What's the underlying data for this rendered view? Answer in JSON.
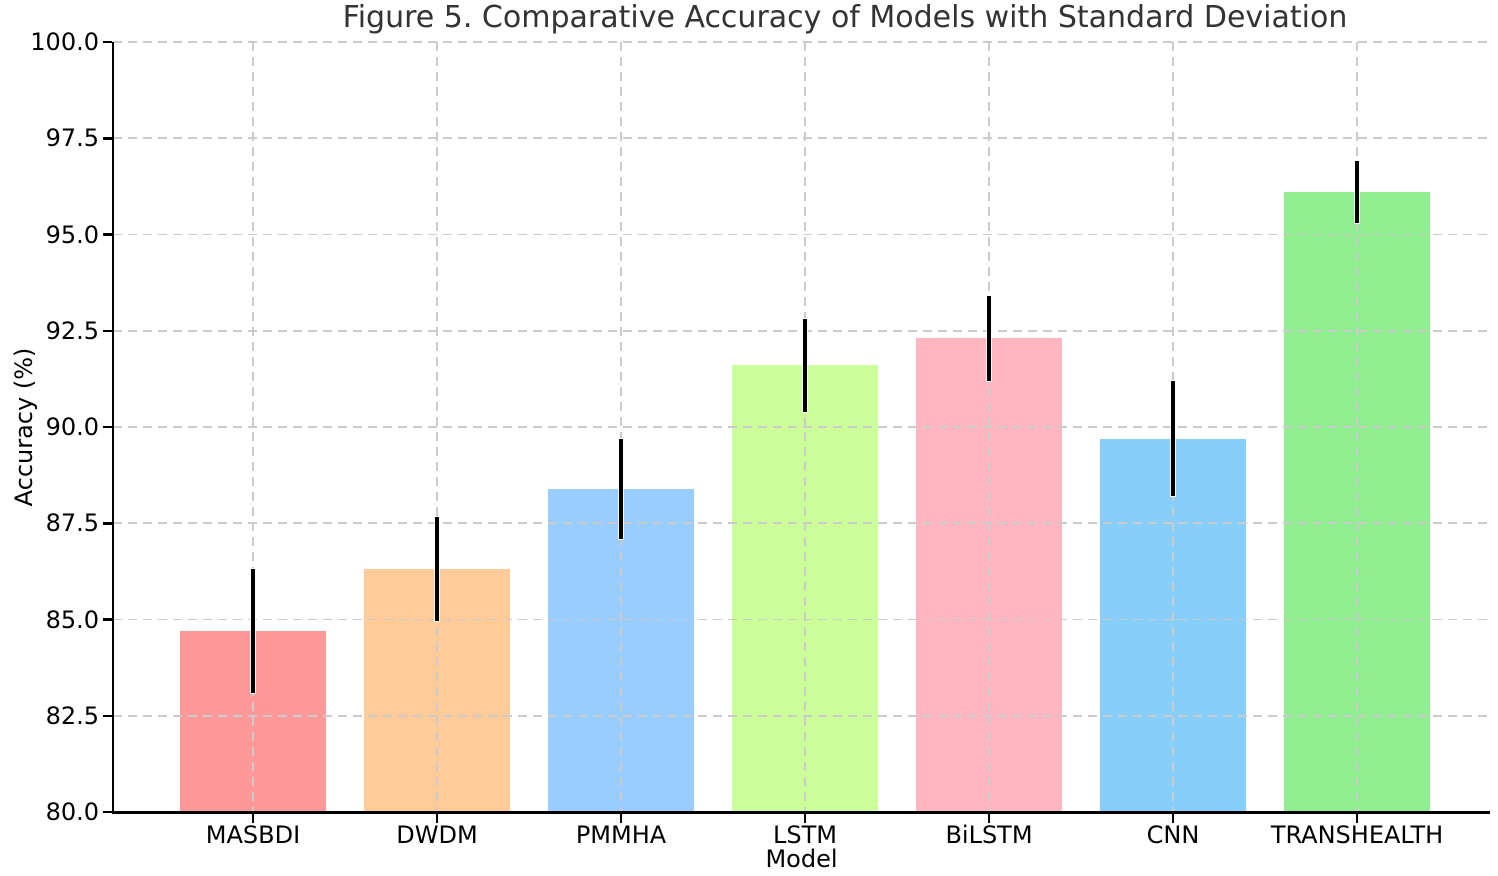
{
  "chart_data": {
    "type": "bar",
    "title": "Figure 5. Comparative Accuracy of Models with Standard Deviation",
    "xlabel": "Model",
    "ylabel": "Accuracy (%)",
    "ylim": [
      80.0,
      100.0
    ],
    "ytick_step": 2.5,
    "ytick_labels": [
      "80.0",
      "82.5",
      "85.0",
      "87.5",
      "90.0",
      "92.5",
      "95.0",
      "97.5",
      "100.0"
    ],
    "grid": true,
    "grid_style": "dashed",
    "legend": "none",
    "categories": [
      "MASBDI",
      "DWDM",
      "PMMHA",
      "LSTM",
      "BiLSTM",
      "CNN",
      "TRANSHEALTH"
    ],
    "values": [
      84.7,
      86.3,
      88.4,
      91.6,
      92.3,
      89.7,
      96.1
    ],
    "errors": [
      1.6,
      1.35,
      1.3,
      1.2,
      1.1,
      1.5,
      0.8
    ],
    "bar_colors": [
      "#ff9999",
      "#ffcc99",
      "#99ccff",
      "#ccff99",
      "#ffb6c1",
      "#87cefa",
      "#90ee90"
    ],
    "error_color": "#000000",
    "axis_color": "#000000",
    "grid_color": "#cbcbcb",
    "title_color": "#333333"
  }
}
